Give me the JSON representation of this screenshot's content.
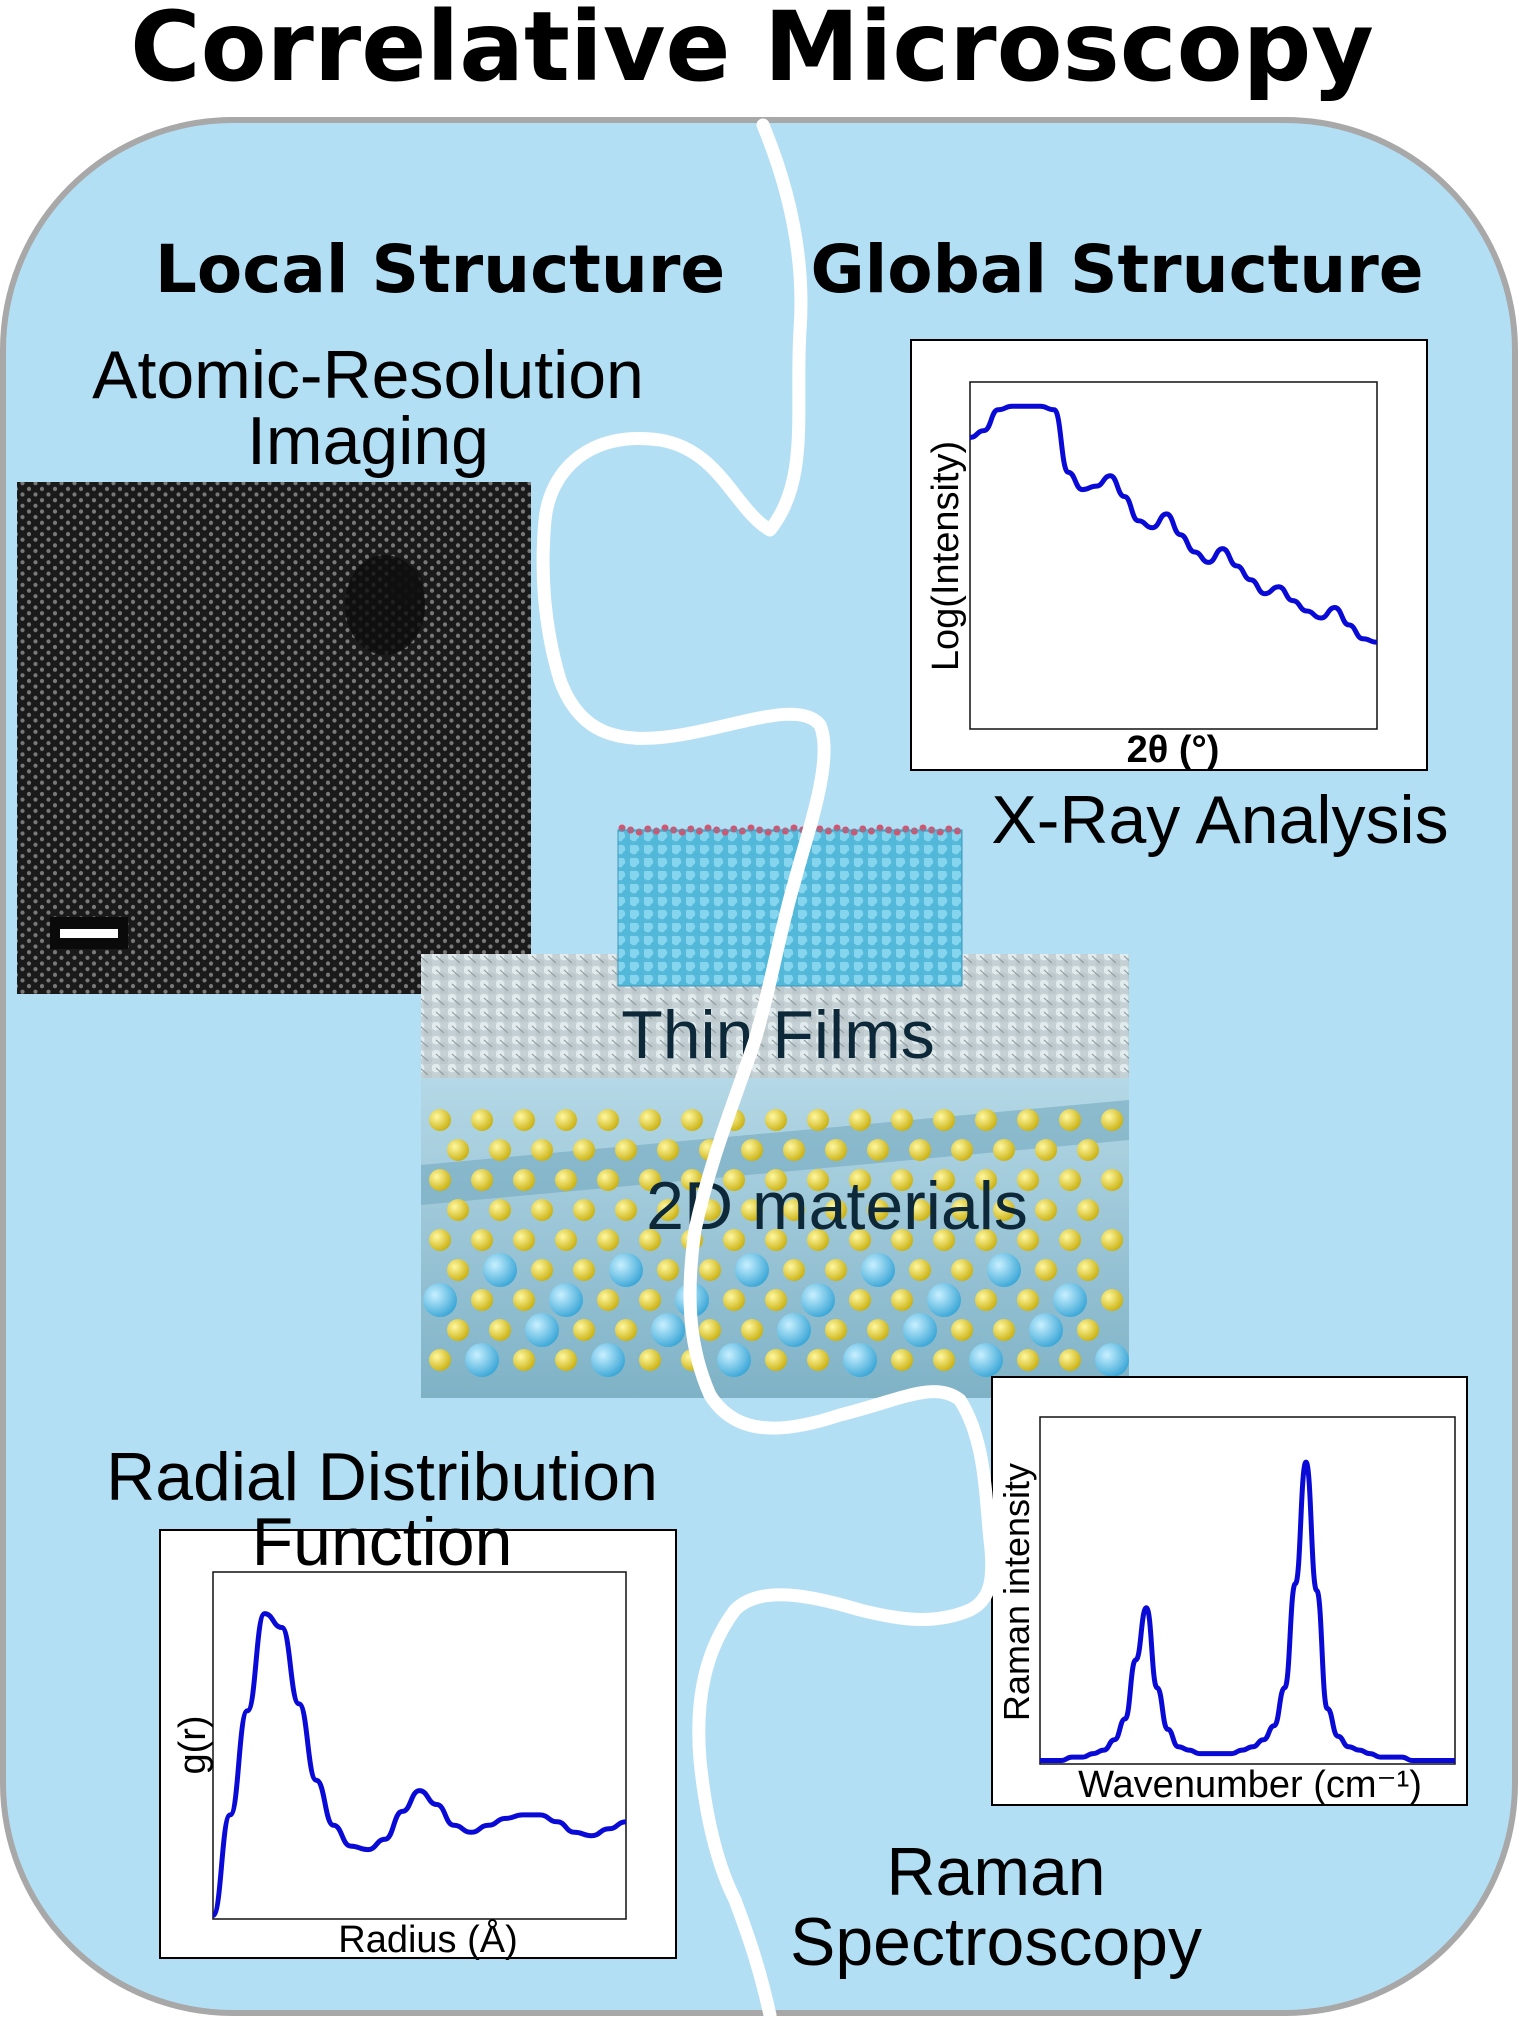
{
  "title": "Correlative Microscopy",
  "headings": {
    "local": "Local Structure",
    "global": "Global Structure"
  },
  "labels": {
    "atomic_line1": "Atomic-Resolution",
    "atomic_line2": "Imaging",
    "xray": "X-Ray Analysis",
    "thin_films": "Thin Films",
    "two_d": "2D materials",
    "rdf_line1": "Radial Distribution",
    "rdf_line2": "Function",
    "raman_line1": "Raman",
    "raman_line2": "Spectroscopy"
  },
  "colors": {
    "background_panel": "#b3dff5",
    "panel_border": "#a8a8a8",
    "curve": "#0a0ad6",
    "thin_film": "#6cc8e0",
    "substrate": "#c8d3d6",
    "sulfur": "#d6c81e",
    "metal": "#5bbde0"
  },
  "chart_data": [
    {
      "type": "line",
      "title": "",
      "xlabel": "2θ (°)",
      "ylabel": "Log(Intensity)",
      "series": [
        {
          "values": [
            0.84,
            0.86,
            0.92,
            0.93,
            0.93,
            0.93,
            0.92,
            0.74,
            0.69,
            0.7,
            0.73,
            0.67,
            0.6,
            0.58,
            0.62,
            0.56,
            0.51,
            0.48,
            0.52,
            0.47,
            0.43,
            0.39,
            0.41,
            0.37,
            0.34,
            0.32,
            0.35,
            0.3,
            0.26,
            0.25
          ]
        }
      ]
    },
    {
      "type": "line",
      "title": "",
      "xlabel": "Wavenumber (cm⁻¹)",
      "ylabel": "Raman intensity",
      "series": [
        {
          "values": [
            0.01,
            0.01,
            0.01,
            0.02,
            0.02,
            0.03,
            0.04,
            0.07,
            0.13,
            0.3,
            0.45,
            0.22,
            0.1,
            0.05,
            0.04,
            0.03,
            0.03,
            0.03,
            0.03,
            0.04,
            0.05,
            0.07,
            0.11,
            0.22,
            0.52,
            0.87,
            0.5,
            0.16,
            0.08,
            0.05,
            0.04,
            0.03,
            0.02,
            0.02,
            0.02,
            0.01,
            0.01,
            0.01,
            0.01,
            0.01
          ]
        }
      ]
    },
    {
      "type": "line",
      "title": "",
      "xlabel": "Radius (Å)",
      "ylabel": "g(r)",
      "series": [
        {
          "values": [
            0.01,
            0.3,
            0.6,
            0.88,
            0.84,
            0.62,
            0.4,
            0.27,
            0.21,
            0.2,
            0.23,
            0.31,
            0.37,
            0.33,
            0.27,
            0.25,
            0.27,
            0.29,
            0.3,
            0.3,
            0.28,
            0.25,
            0.24,
            0.26,
            0.28
          ]
        }
      ]
    }
  ]
}
